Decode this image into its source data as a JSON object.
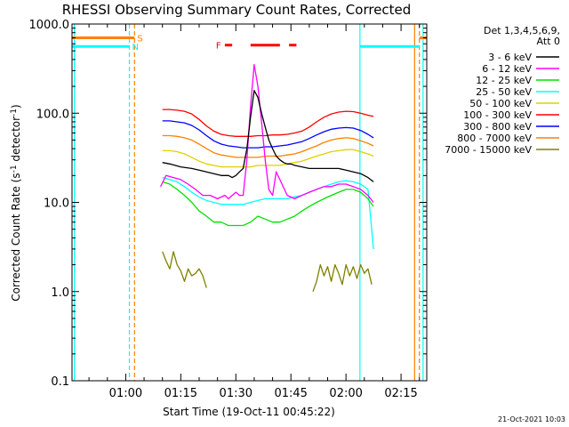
{
  "chart_data": {
    "type": "line",
    "title": "RHESSI Observing Summary Count Rates, Corrected",
    "xlabel": "Start Time (19-Oct-11 00:45:22)",
    "ylabel": "Corrected Count Rate (s",
    "ylabel_superscript_a": "-1",
    "ylabel_mid": " detector",
    "ylabel_superscript_b": "-1",
    "ylabel_end": ")",
    "y_scale": "log",
    "ylim": [
      0.1,
      1000
    ],
    "xlim_minutes": [
      45.37,
      142.0
    ],
    "y_ticks": [
      {
        "value": 0.1,
        "label": "0.1"
      },
      {
        "value": 1,
        "label": "1.0"
      },
      {
        "value": 10,
        "label": "10.0"
      },
      {
        "value": 100,
        "label": "100.0"
      },
      {
        "value": 1000,
        "label": "1000.0"
      }
    ],
    "x_ticks": [
      {
        "minute": 60,
        "label": "01:00"
      },
      {
        "minute": 75,
        "label": "01:15"
      },
      {
        "minute": 90,
        "label": "01:30"
      },
      {
        "minute": 105,
        "label": "01:45"
      },
      {
        "minute": 120,
        "label": "02:00"
      },
      {
        "minute": 135,
        "label": "02:15"
      }
    ],
    "legend": {
      "header_line1": "Det 1,3,4,5,6,9,",
      "header_line2": "Att 0",
      "position": "top-right",
      "entries": [
        {
          "label": "3 - 6 keV",
          "color": "#000000"
        },
        {
          "label": "6 - 12 keV",
          "color": "#ff00ff"
        },
        {
          "label": "12 - 25 keV",
          "color": "#00e000"
        },
        {
          "label": "25 - 50 keV",
          "color": "#00ffff"
        },
        {
          "label": "50 - 100 keV",
          "color": "#e0d000"
        },
        {
          "label": "100 - 300 keV",
          "color": "#ff0000"
        },
        {
          "label": "300 - 800 keV",
          "color": "#0000ff"
        },
        {
          "label": "800 - 7000 keV",
          "color": "#ff8000"
        },
        {
          "label": "7000 - 15000 keV",
          "color": "#808000"
        }
      ]
    },
    "series": [
      {
        "band": "3 - 6 keV",
        "color": "#000000",
        "x": [
          70,
          72,
          75,
          78,
          80,
          82,
          84,
          86,
          88,
          89,
          90,
          91,
          92,
          93,
          94,
          95,
          96,
          97,
          98,
          99,
          100,
          101,
          102,
          103,
          104,
          105,
          106,
          108,
          110,
          112,
          114,
          116,
          118,
          120,
          122,
          124,
          126,
          127.5
        ],
        "y": [
          28,
          27,
          25,
          24,
          23,
          22,
          21,
          20,
          20,
          19,
          20,
          22,
          24,
          40,
          90,
          180,
          150,
          100,
          70,
          50,
          40,
          33,
          30,
          28,
          27,
          27,
          26,
          25,
          24,
          24,
          24,
          24,
          24,
          23,
          22,
          21,
          19,
          17
        ]
      },
      {
        "band": "6 - 12 keV",
        "color": "#ff00ff",
        "x": [
          69.5,
          71,
          73,
          75,
          77,
          79,
          81,
          83,
          85,
          87,
          88,
          89,
          90,
          91,
          92,
          93,
          94,
          95,
          96,
          97,
          98,
          99,
          100,
          101,
          102,
          104,
          106,
          108,
          110,
          112,
          114,
          116,
          118,
          120,
          122,
          124,
          126,
          127.5
        ],
        "y": [
          15,
          20,
          19,
          18,
          16,
          14,
          12,
          12,
          11,
          12,
          11,
          12,
          13,
          12,
          12,
          30,
          120,
          350,
          200,
          80,
          30,
          14,
          12,
          22,
          18,
          12,
          11,
          12,
          13,
          14,
          15,
          15,
          16,
          16,
          15,
          14,
          12,
          10
        ]
      },
      {
        "band": "12 - 25 keV",
        "color": "#00e000",
        "x": [
          70,
          72,
          74,
          76,
          78,
          80,
          82,
          84,
          86,
          88,
          90,
          92,
          94,
          96,
          98,
          100,
          102,
          104,
          106,
          108,
          110,
          112,
          114,
          116,
          118,
          120,
          122,
          124,
          126,
          127.5
        ],
        "y": [
          17,
          16,
          14,
          12,
          10,
          8,
          7,
          6,
          6,
          5.5,
          5.5,
          5.5,
          6,
          7,
          6.5,
          6,
          6,
          6.5,
          7,
          8,
          9,
          10,
          11,
          12,
          13,
          14,
          14,
          13,
          11,
          9
        ]
      },
      {
        "band": "25 - 50 keV",
        "color": "#00ffff",
        "x": [
          70,
          72,
          74,
          76,
          78,
          80,
          82,
          84,
          86,
          88,
          90,
          92,
          94,
          96,
          98,
          100,
          102,
          104,
          106,
          108,
          110,
          112,
          114,
          116,
          118,
          120,
          122,
          124,
          126,
          127.5
        ],
        "y": [
          19,
          18,
          17,
          15,
          13,
          11.5,
          10.5,
          10,
          9.5,
          9.5,
          9.5,
          9.5,
          10,
          10.5,
          11,
          11,
          11,
          11,
          11.5,
          12,
          13,
          14,
          15,
          16,
          17,
          17.5,
          17,
          16,
          14,
          3
        ]
      },
      {
        "band": "50 - 100 keV",
        "color": "#e0d000",
        "x": [
          70,
          72,
          74,
          76,
          78,
          80,
          82,
          84,
          86,
          88,
          90,
          92,
          94,
          96,
          98,
          100,
          102,
          104,
          106,
          108,
          110,
          112,
          114,
          116,
          118,
          120,
          122,
          124,
          126,
          127.5
        ],
        "y": [
          38,
          38,
          37,
          35,
          32,
          29,
          27,
          26,
          25,
          25,
          25,
          25,
          25,
          26,
          26,
          26,
          26,
          27,
          28,
          29,
          31,
          33,
          35,
          37,
          38,
          39,
          39,
          37,
          35,
          33
        ]
      },
      {
        "band": "100 - 300 keV",
        "color": "#ff0000",
        "x": [
          70,
          72,
          74,
          76,
          78,
          80,
          82,
          84,
          86,
          88,
          90,
          92,
          94,
          96,
          98,
          100,
          102,
          104,
          106,
          108,
          110,
          112,
          114,
          116,
          118,
          120,
          122,
          124,
          126,
          127.5
        ],
        "y": [
          110,
          110,
          108,
          105,
          98,
          85,
          72,
          63,
          58,
          56,
          55,
          55,
          55,
          56,
          56,
          57,
          57,
          58,
          60,
          63,
          70,
          80,
          90,
          98,
          103,
          105,
          104,
          100,
          95,
          92
        ]
      },
      {
        "band": "300 - 800 keV",
        "color": "#0000ff",
        "x": [
          70,
          72,
          74,
          76,
          78,
          80,
          82,
          84,
          86,
          88,
          90,
          92,
          94,
          96,
          98,
          100,
          102,
          104,
          106,
          108,
          110,
          112,
          114,
          116,
          118,
          120,
          122,
          124,
          126,
          127.5
        ],
        "y": [
          82,
          82,
          80,
          78,
          73,
          65,
          56,
          49,
          45,
          43,
          42,
          41,
          41,
          41,
          42,
          42,
          43,
          44,
          46,
          48,
          52,
          57,
          62,
          66,
          68,
          69,
          68,
          64,
          58,
          53
        ]
      },
      {
        "band": "800 - 7000 keV",
        "color": "#ff8000",
        "x": [
          70,
          72,
          74,
          76,
          78,
          80,
          82,
          84,
          86,
          88,
          90,
          92,
          94,
          96,
          98,
          100,
          102,
          104,
          106,
          108,
          110,
          112,
          114,
          116,
          118,
          120,
          122,
          124,
          126,
          127.5
        ],
        "y": [
          56,
          56,
          55,
          53,
          50,
          45,
          40,
          36,
          34,
          33,
          32,
          32,
          32,
          32,
          33,
          33,
          33,
          34,
          35,
          37,
          40,
          43,
          47,
          50,
          52,
          53,
          52,
          49,
          46,
          43
        ]
      },
      {
        "band": "7000 - 15000 keV",
        "color": "#808000",
        "x": [
          70,
          71,
          72,
          73,
          74,
          75,
          76,
          77,
          78,
          79,
          80,
          81,
          82
        ],
        "y": [
          2.8,
          2.2,
          1.8,
          2.8,
          2.0,
          1.7,
          1.3,
          1.8,
          1.5,
          1.6,
          1.8,
          1.5,
          1.1
        ]
      },
      {
        "band": "7000 - 15000 keV",
        "color": "#808000",
        "x": [
          111,
          112,
          113,
          114,
          115,
          116,
          117,
          118,
          119,
          120,
          121,
          122,
          123,
          124,
          125,
          126,
          127
        ],
        "y": [
          1.0,
          1.3,
          2.0,
          1.5,
          1.9,
          1.3,
          2.0,
          1.6,
          1.2,
          2.0,
          1.5,
          1.9,
          1.4,
          2.0,
          1.6,
          1.8,
          1.2
        ]
      }
    ],
    "state_bars": [
      {
        "name": "S",
        "color": "#ff8000",
        "y": 700,
        "segments": [
          [
            45.37,
            62.4
          ],
          [
            140.0,
            142.0
          ]
        ]
      },
      {
        "name": "N",
        "color": "#00ffff",
        "y": 560,
        "segments": [
          [
            45.37,
            61.0
          ],
          [
            123.8,
            140.0
          ]
        ]
      }
    ],
    "flare_marker": {
      "name": "F",
      "color": "#ff0000",
      "y": 580,
      "segments": [
        [
          87.0,
          89.0
        ],
        [
          94.0,
          102.0
        ],
        [
          104.5,
          106.5
        ]
      ]
    },
    "vertical_lines": [
      {
        "minute": 46.0,
        "color": "#00ffff",
        "style": "solid"
      },
      {
        "minute": 61.0,
        "color": "#00ffff",
        "style": "dashed"
      },
      {
        "minute": 62.4,
        "color": "#ff8000",
        "style": "dashed"
      },
      {
        "minute": 123.8,
        "color": "#00ffff",
        "style": "solid"
      },
      {
        "minute": 138.7,
        "color": "#ff8000",
        "style": "solid"
      },
      {
        "minute": 140.0,
        "color": "#ff8000",
        "style": "dashed"
      },
      {
        "minute": 141.0,
        "color": "#00ffff",
        "style": "solid"
      }
    ],
    "timestamp": "21-Oct-2021 10:03"
  }
}
